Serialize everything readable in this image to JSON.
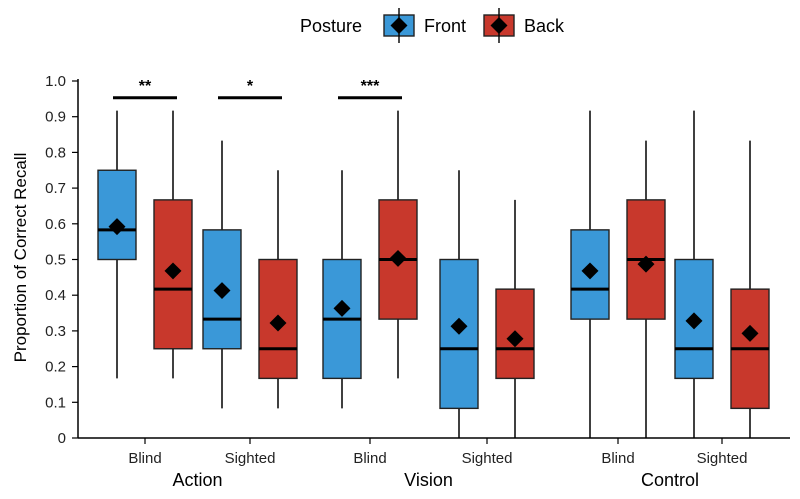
{
  "chart_data": {
    "type": "boxplot",
    "title": "",
    "xlabel": "",
    "ylabel": "Proportion of Correct Recall",
    "ylim": [
      0,
      1.0
    ],
    "yticks": [
      0,
      0.1,
      0.2,
      0.3,
      0.4,
      0.5,
      0.6,
      0.7,
      0.8,
      0.9,
      1.0
    ],
    "ytick_labels": [
      "0",
      "0.1",
      "0.2",
      "0.3",
      "0.4",
      "0.5",
      "0.6",
      "0.7",
      "0.8",
      "0.9",
      "1.0"
    ],
    "legend": {
      "title": "Posture",
      "position": "top",
      "entries": [
        {
          "name": "Front",
          "color": "#3a98d8"
        },
        {
          "name": "Back",
          "color": "#c8382c"
        }
      ]
    },
    "groups": [
      {
        "label": "Action",
        "conditions": [
          "Blind",
          "Sighted"
        ]
      },
      {
        "label": "Vision",
        "conditions": [
          "Blind",
          "Sighted"
        ]
      },
      {
        "label": "Control",
        "conditions": [
          "Blind",
          "Sighted"
        ]
      }
    ],
    "boxes": [
      {
        "group": "Action",
        "condition": "Blind",
        "posture": "Front",
        "min": 0.167,
        "q1": 0.5,
        "median": 0.583,
        "q3": 0.75,
        "max": 0.917,
        "mean": 0.592
      },
      {
        "group": "Action",
        "condition": "Blind",
        "posture": "Back",
        "min": 0.167,
        "q1": 0.25,
        "median": 0.417,
        "q3": 0.667,
        "max": 0.917,
        "mean": 0.468
      },
      {
        "group": "Action",
        "condition": "Sighted",
        "posture": "Front",
        "min": 0.083,
        "q1": 0.25,
        "median": 0.333,
        "q3": 0.583,
        "max": 0.833,
        "mean": 0.413
      },
      {
        "group": "Action",
        "condition": "Sighted",
        "posture": "Back",
        "min": 0.083,
        "q1": 0.167,
        "median": 0.25,
        "q3": 0.5,
        "max": 0.75,
        "mean": 0.322
      },
      {
        "group": "Vision",
        "condition": "Blind",
        "posture": "Front",
        "min": 0.083,
        "q1": 0.167,
        "median": 0.333,
        "q3": 0.5,
        "max": 0.75,
        "mean": 0.363
      },
      {
        "group": "Vision",
        "condition": "Blind",
        "posture": "Back",
        "min": 0.167,
        "q1": 0.333,
        "median": 0.5,
        "q3": 0.667,
        "max": 0.917,
        "mean": 0.503
      },
      {
        "group": "Vision",
        "condition": "Sighted",
        "posture": "Front",
        "min": 0.0,
        "q1": 0.083,
        "median": 0.25,
        "q3": 0.5,
        "max": 0.75,
        "mean": 0.313
      },
      {
        "group": "Vision",
        "condition": "Sighted",
        "posture": "Back",
        "min": 0.0,
        "q1": 0.167,
        "median": 0.25,
        "q3": 0.417,
        "max": 0.667,
        "mean": 0.278
      },
      {
        "group": "Control",
        "condition": "Blind",
        "posture": "Front",
        "min": 0.0,
        "q1": 0.333,
        "median": 0.417,
        "q3": 0.583,
        "max": 0.917,
        "mean": 0.468
      },
      {
        "group": "Control",
        "condition": "Blind",
        "posture": "Back",
        "min": 0.0,
        "q1": 0.333,
        "median": 0.5,
        "q3": 0.667,
        "max": 0.833,
        "mean": 0.487
      },
      {
        "group": "Control",
        "condition": "Sighted",
        "posture": "Front",
        "min": 0.0,
        "q1": 0.167,
        "median": 0.25,
        "q3": 0.5,
        "max": 0.917,
        "mean": 0.328
      },
      {
        "group": "Control",
        "condition": "Sighted",
        "posture": "Back",
        "min": 0.0,
        "q1": 0.083,
        "median": 0.25,
        "q3": 0.417,
        "max": 0.833,
        "mean": 0.293
      }
    ],
    "significance": [
      {
        "group": "Action",
        "condition": "Blind",
        "label": "**"
      },
      {
        "group": "Action",
        "condition": "Sighted",
        "label": "*"
      },
      {
        "group": "Vision",
        "condition": "Blind",
        "label": "***"
      }
    ]
  }
}
